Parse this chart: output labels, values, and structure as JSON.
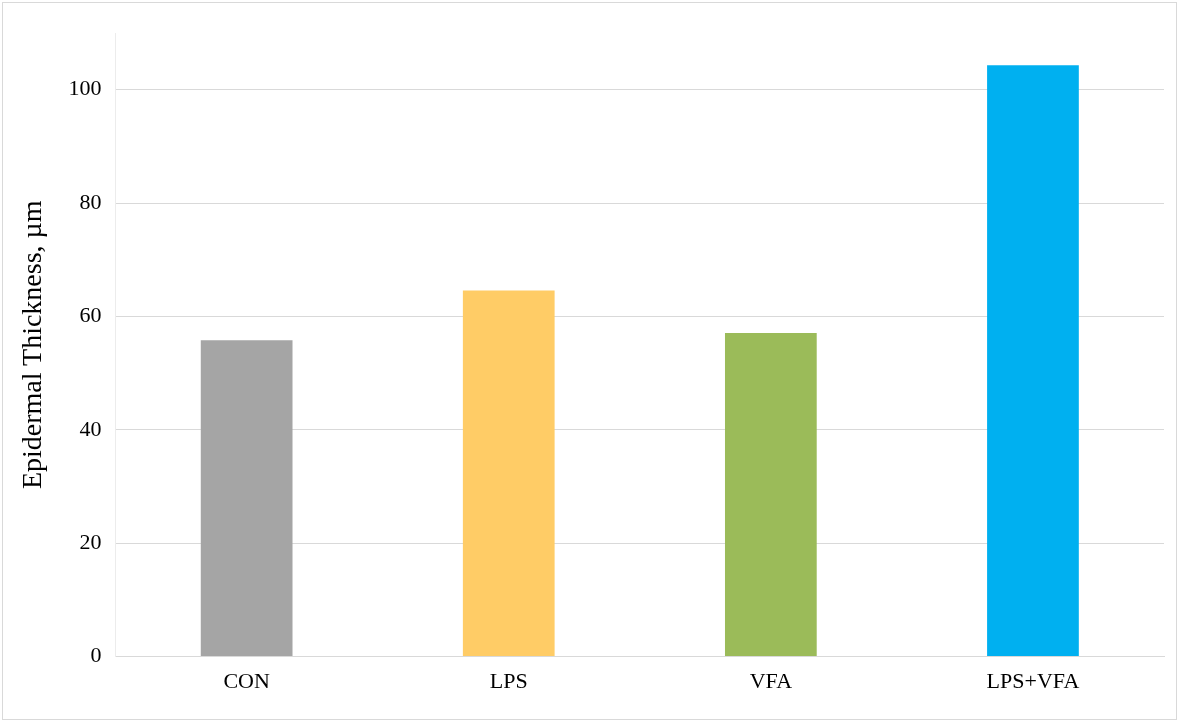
{
  "chart_data": {
    "type": "bar",
    "ylabel": "Epidermal Thickness, µm",
    "categories": [
      "CON",
      "LPS",
      "VFA",
      "LPS+VFA"
    ],
    "values": [
      55.8,
      64.6,
      57.1,
      104.3
    ],
    "colors": [
      "#a5a5a5",
      "#ffcc66",
      "#9bbb59",
      "#00b0f0"
    ],
    "ylim": [
      0,
      110
    ],
    "yticks": [
      0,
      20,
      40,
      60,
      80,
      100
    ],
    "grid": "y",
    "legend": false
  }
}
